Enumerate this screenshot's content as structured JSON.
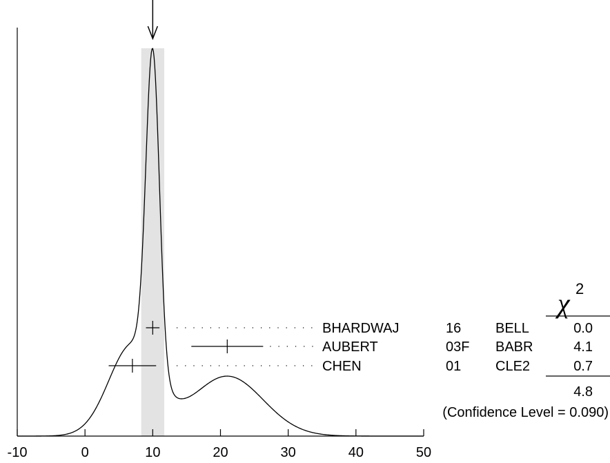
{
  "chart_data": {
    "type": "ideogram",
    "xlim": [
      -10,
      50
    ],
    "x_ticks": [
      "-10",
      "0",
      "10",
      "20",
      "30",
      "40",
      "50"
    ],
    "average": {
      "value": 10.0,
      "band": [
        8.3,
        11.7
      ]
    },
    "measurements": [
      {
        "author": "BHARDWAJ",
        "year": "16",
        "experiment": "BELL",
        "value": 10.0,
        "error": 1.0,
        "chi2": "0.0"
      },
      {
        "author": "AUBERT",
        "year": "03F",
        "experiment": "BABR",
        "value": 21.0,
        "error": 5.3,
        "chi2": "4.1"
      },
      {
        "author": "CHEN",
        "year": "01",
        "experiment": "CLE2",
        "value": 7.0,
        "error": 3.5,
        "chi2": "0.7"
      }
    ],
    "chi2_header": "χ",
    "chi2_header_sup": "2",
    "chi2_total": "4.8",
    "confidence_level": "(Confidence Level = 0.090)"
  }
}
